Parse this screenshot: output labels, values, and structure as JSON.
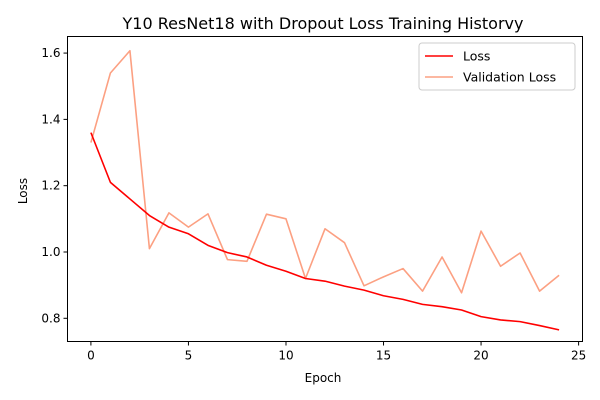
{
  "chart_data": {
    "type": "line",
    "title": "Y10 ResNet18 with Dropout Loss Training Historvy",
    "xlabel": "Epoch",
    "ylabel": "Loss",
    "xlim": [
      -1.2,
      25.2
    ],
    "ylim": [
      0.73,
      1.65
    ],
    "xticks": [
      0,
      5,
      10,
      15,
      20,
      25
    ],
    "yticks": [
      0.8,
      1.0,
      1.2,
      1.4,
      1.6
    ],
    "xtick_labels": [
      "0",
      "5",
      "10",
      "15",
      "20",
      "25"
    ],
    "ytick_labels": [
      "0.8",
      "1.0",
      "1.2",
      "1.4",
      "1.6"
    ],
    "grid": false,
    "legend_position": "top-right",
    "x": [
      0,
      1,
      2,
      3,
      4,
      5,
      6,
      7,
      8,
      9,
      10,
      11,
      12,
      13,
      14,
      15,
      16,
      17,
      18,
      19,
      20,
      21,
      22,
      23,
      24
    ],
    "series": [
      {
        "name": "Loss",
        "color": "#ff0000",
        "values": [
          1.36,
          1.21,
          1.16,
          1.11,
          1.075,
          1.055,
          1.02,
          0.998,
          0.985,
          0.96,
          0.942,
          0.92,
          0.912,
          0.897,
          0.885,
          0.868,
          0.857,
          0.842,
          0.835,
          0.825,
          0.805,
          0.795,
          0.79,
          0.778,
          0.765
        ]
      },
      {
        "name": "Validation Loss",
        "color": "#fca082",
        "values": [
          1.33,
          1.54,
          1.607,
          1.01,
          1.118,
          1.075,
          1.115,
          0.977,
          0.972,
          1.114,
          1.1,
          0.92,
          1.07,
          1.028,
          0.898,
          0.925,
          0.95,
          0.882,
          0.985,
          0.877,
          1.063,
          0.957,
          0.997,
          0.882,
          0.93
        ]
      }
    ]
  }
}
